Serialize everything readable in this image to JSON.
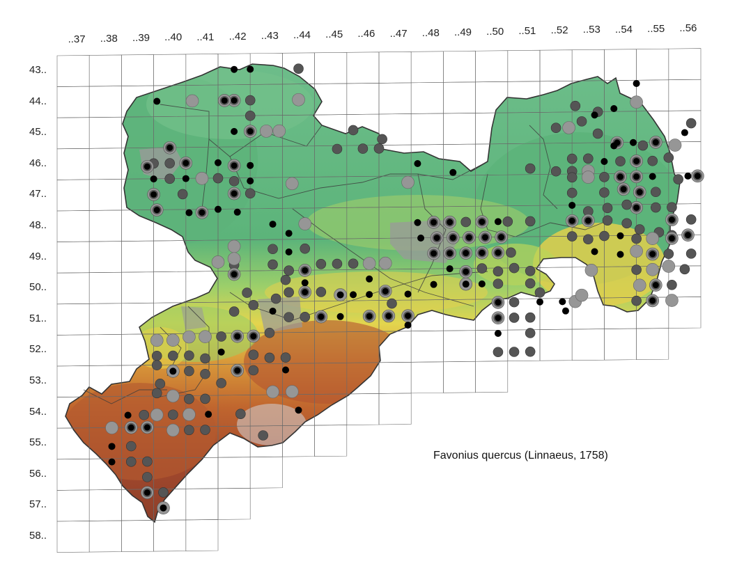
{
  "map": {
    "species_name": "Favonius quercus (Linnaeus, 1758)",
    "column_labels": [
      "..37",
      "..38",
      "..39",
      "..40",
      "..41",
      "..42",
      "..43",
      "..44",
      "..45",
      "..46",
      "..47",
      "..48",
      "..49",
      "..50",
      "..51",
      "..52",
      "..53",
      "..54",
      "..55",
      "..56"
    ],
    "row_labels": [
      "43..",
      "44..",
      "45..",
      "46..",
      "47..",
      "48..",
      "49..",
      "50..",
      "51..",
      "52..",
      "53..",
      "54..",
      "55..",
      "56..",
      "57..",
      "58.."
    ],
    "colors": {
      "lowland": "#5cb47a",
      "hills": "#8fc968",
      "upland": "#e6d24a",
      "mountain": "#c86a32",
      "summit": "#8c3e28",
      "urban": "#9a9a9a",
      "grid": "#555555",
      "marker_black": "#000000",
      "marker_dark": "#555555",
      "marker_light": "#969696"
    }
  }
}
